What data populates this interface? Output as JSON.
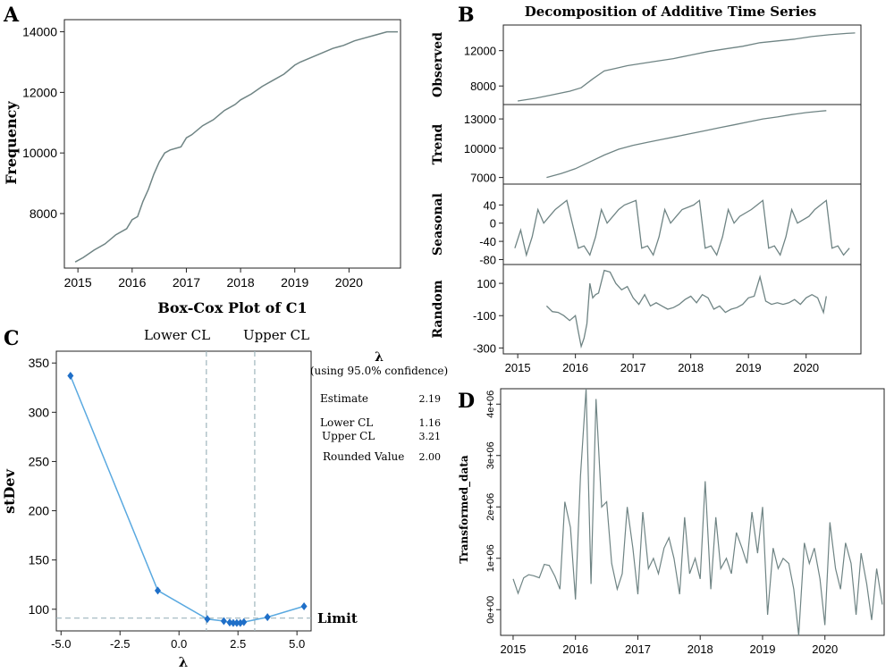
{
  "panels": {
    "A": {
      "letter": "A",
      "ylabel": "Frequency",
      "xlabel": "Box-Cox Plot of C1",
      "y_ticks": [
        "8000",
        "10000",
        "12000",
        "14000"
      ],
      "y_tick_values": [
        8000,
        10000,
        12000,
        14000
      ],
      "x_ticks": [
        "2015",
        "2016",
        "2017",
        "2018",
        "2019",
        "2020"
      ],
      "x_tick_values": [
        2015,
        2016,
        2017,
        2018,
        2019,
        2020
      ]
    },
    "B": {
      "letter": "B",
      "title": "Decomposition of Additive Time Series",
      "x_ticks": [
        "2015",
        "2016",
        "2017",
        "2018",
        "2019",
        "2020"
      ],
      "x_tick_values": [
        2015,
        2016,
        2017,
        2018,
        2019,
        2020
      ],
      "rows": [
        {
          "label": "Observed",
          "ticks": [
            "8000",
            "12000"
          ],
          "tick_values": [
            8000,
            12000
          ]
        },
        {
          "label": "Trend",
          "ticks": [
            "7000",
            "10000",
            "13000"
          ],
          "tick_values": [
            7000,
            10000,
            13000
          ]
        },
        {
          "label": "Seasonal",
          "ticks": [
            "-80",
            "-40",
            "0",
            "40"
          ],
          "tick_values": [
            -80,
            -40,
            0,
            40
          ]
        },
        {
          "label": "Random",
          "ticks": [
            "-300",
            "-100",
            "100"
          ],
          "tick_values": [
            -300,
            -100,
            100
          ]
        }
      ]
    },
    "C": {
      "letter": "C",
      "ylabel": "stDev",
      "xlabel": "λ",
      "lower_cl_label": "Lower CL",
      "upper_cl_label": "Upper CL",
      "limit_label": "Limit",
      "y_ticks": [
        "100",
        "150",
        "200",
        "250",
        "300",
        "350"
      ],
      "y_tick_values": [
        100,
        150,
        200,
        250,
        300,
        350
      ],
      "x_ticks": [
        "-5.0",
        "-2.5",
        "0.0",
        "2.5",
        "5.0"
      ],
      "x_tick_values": [
        -5,
        -2.5,
        0,
        2.5,
        5
      ],
      "stats": {
        "lambda_label": "λ",
        "confidence": "(using 95.0% confidence)",
        "estimate_label": "Estimate",
        "estimate": "2.19",
        "lower_label": "Lower CL",
        "lower": "1.16",
        "upper_label": "Upper CL",
        "upper": "3.21",
        "rounded_label": "Rounded Value",
        "rounded": "2.00"
      }
    },
    "D": {
      "letter": "D",
      "ylabel": "Transformed_data",
      "y_ticks": [
        "0e+00",
        "1e+06",
        "2e+06",
        "3e+06",
        "4e+06"
      ],
      "y_tick_values": [
        0,
        1000000,
        2000000,
        3000000,
        4000000
      ],
      "x_ticks": [
        "2015",
        "2016",
        "2017",
        "2018",
        "2019",
        "2020"
      ],
      "x_tick_values": [
        2015,
        2016,
        2017,
        2018,
        2019,
        2020
      ]
    }
  },
  "colors": {
    "line_gray": "#6f8484",
    "line_blue": "#5aa9e0",
    "marker_blue": "#1f6fc8",
    "cl_dashed": "#9fb5bd",
    "axis": "#222222"
  },
  "chart_data": [
    {
      "panel": "A",
      "type": "line",
      "ylabel": "Frequency",
      "xlabel": "Box-Cox Plot of C1",
      "ylim": [
        6200,
        14400
      ],
      "xlim": [
        2014.75,
        2020.95
      ],
      "x": [
        2014.95,
        2015.1,
        2015.3,
        2015.5,
        2015.7,
        2015.9,
        2016.0,
        2016.1,
        2016.2,
        2016.3,
        2016.4,
        2016.5,
        2016.6,
        2016.7,
        2016.9,
        2017.0,
        2017.1,
        2017.3,
        2017.5,
        2017.7,
        2017.9,
        2018.0,
        2018.2,
        2018.4,
        2018.6,
        2018.8,
        2019.0,
        2019.1,
        2019.3,
        2019.5,
        2019.7,
        2019.9,
        2020.1,
        2020.3,
        2020.5,
        2020.7,
        2020.9
      ],
      "y": [
        6400,
        6550,
        6800,
        7000,
        7300,
        7500,
        7800,
        7900,
        8400,
        8800,
        9300,
        9700,
        10000,
        10100,
        10200,
        10500,
        10600,
        10900,
        11100,
        11400,
        11600,
        11750,
        11950,
        12200,
        12400,
        12600,
        12900,
        13000,
        13150,
        13300,
        13450,
        13550,
        13700,
        13800,
        13900,
        14000,
        14000
      ]
    },
    {
      "panel": "B",
      "type": "line",
      "title": "Decomposition of Additive Time Series",
      "xlim": [
        2014.75,
        2020.95
      ],
      "series": [
        {
          "name": "Observed",
          "ylim": [
            6200,
            14600
          ],
          "x": [
            2015.0,
            2015.3,
            2015.6,
            2015.9,
            2016.1,
            2016.3,
            2016.5,
            2016.7,
            2016.9,
            2017.1,
            2017.4,
            2017.7,
            2018.0,
            2018.3,
            2018.6,
            2018.9,
            2019.2,
            2019.5,
            2019.8,
            2020.1,
            2020.4,
            2020.7,
            2020.85
          ],
          "y": [
            6300,
            6600,
            7000,
            7400,
            7800,
            8800,
            9700,
            10000,
            10300,
            10500,
            10800,
            11100,
            11500,
            11900,
            12200,
            12500,
            12900,
            13100,
            13300,
            13600,
            13800,
            13950,
            14000
          ]
        },
        {
          "name": "Trend",
          "ylim": [
            6600,
            14200
          ],
          "x": [
            2015.5,
            2015.75,
            2016.0,
            2016.25,
            2016.5,
            2016.75,
            2017.0,
            2017.25,
            2017.5,
            2017.75,
            2018.0,
            2018.25,
            2018.5,
            2018.75,
            2019.0,
            2019.25,
            2019.5,
            2019.75,
            2020.0,
            2020.25,
            2020.35
          ],
          "y": [
            7000,
            7400,
            7900,
            8600,
            9300,
            9900,
            10300,
            10600,
            10900,
            11200,
            11500,
            11800,
            12100,
            12400,
            12700,
            13000,
            13200,
            13450,
            13650,
            13800,
            13850
          ]
        },
        {
          "name": "Seasonal",
          "ylim": [
            -85,
            80
          ],
          "x": [
            2014.95,
            2015.05,
            2015.15,
            2015.25,
            2015.35,
            2015.45,
            2015.55,
            2015.65,
            2015.75,
            2015.85,
            2016.05,
            2016.15,
            2016.25,
            2016.35,
            2016.45,
            2016.55,
            2016.65,
            2016.75,
            2016.85,
            2017.05,
            2017.15,
            2017.25,
            2017.35,
            2017.45,
            2017.55,
            2017.65,
            2017.75,
            2017.85,
            2018.05,
            2018.15,
            2018.25,
            2018.35,
            2018.45,
            2018.55,
            2018.65,
            2018.75,
            2018.85,
            2019.05,
            2019.15,
            2019.25,
            2019.35,
            2019.45,
            2019.55,
            2019.65,
            2019.75,
            2019.85,
            2020.05,
            2020.15,
            2020.25,
            2020.35,
            2020.45,
            2020.55,
            2020.65,
            2020.75
          ],
          "y": [
            -55,
            -15,
            -70,
            -30,
            30,
            0,
            15,
            30,
            40,
            50,
            -55,
            -50,
            -70,
            -30,
            30,
            0,
            15,
            30,
            40,
            50,
            -55,
            -50,
            -70,
            -30,
            30,
            0,
            15,
            30,
            40,
            50,
            -55,
            -50,
            -70,
            -30,
            30,
            0,
            15,
            30,
            40,
            50,
            -55,
            -50,
            -70,
            -30,
            30,
            0,
            15,
            30,
            40,
            50,
            -55,
            -50,
            -70,
            -55
          ]
        },
        {
          "name": "Random",
          "ylim": [
            -320,
            200
          ],
          "x": [
            2015.5,
            2015.6,
            2015.7,
            2015.8,
            2015.9,
            2016.0,
            2016.05,
            2016.1,
            2016.15,
            2016.2,
            2016.25,
            2016.3,
            2016.35,
            2016.4,
            2016.5,
            2016.6,
            2016.7,
            2016.8,
            2016.9,
            2017.0,
            2017.1,
            2017.2,
            2017.3,
            2017.4,
            2017.5,
            2017.6,
            2017.7,
            2017.8,
            2017.9,
            2018.0,
            2018.1,
            2018.2,
            2018.3,
            2018.4,
            2018.5,
            2018.6,
            2018.7,
            2018.8,
            2018.9,
            2019.0,
            2019.1,
            2019.2,
            2019.3,
            2019.4,
            2019.5,
            2019.6,
            2019.7,
            2019.8,
            2019.9,
            2020.0,
            2020.1,
            2020.2,
            2020.3,
            2020.35
          ],
          "y": [
            -40,
            -75,
            -80,
            -100,
            -130,
            -100,
            -200,
            -290,
            -240,
            -150,
            100,
            10,
            30,
            40,
            180,
            170,
            100,
            60,
            80,
            10,
            -30,
            30,
            -40,
            -20,
            -40,
            -60,
            -50,
            -30,
            0,
            20,
            -20,
            30,
            10,
            -60,
            -40,
            -80,
            -60,
            -50,
            -30,
            10,
            20,
            140,
            -10,
            -30,
            -20,
            -30,
            -20,
            0,
            -30,
            10,
            30,
            10,
            -80,
            20
          ]
        }
      ]
    },
    {
      "panel": "C",
      "type": "scatter",
      "xlabel": "λ",
      "ylabel": "stDev",
      "xlim": [
        -5.2,
        5.6
      ],
      "ylim": [
        78,
        362
      ],
      "x": [
        -4.6,
        -0.9,
        1.2,
        1.9,
        2.15,
        2.3,
        2.45,
        2.6,
        2.75,
        3.75,
        5.3
      ],
      "y": [
        337,
        119,
        90,
        88,
        86.5,
        86,
        86,
        86,
        87,
        92,
        103
      ],
      "lower_cl": 1.16,
      "upper_cl": 3.21,
      "limit": 91
    },
    {
      "panel": "D",
      "type": "line",
      "ylabel": "Transformed_data",
      "xlim": [
        2014.8,
        2020.95
      ],
      "ylim": [
        -500000,
        4300000
      ],
      "x": [
        2015.0,
        2015.08,
        2015.17,
        2015.25,
        2015.33,
        2015.42,
        2015.5,
        2015.58,
        2015.67,
        2015.75,
        2015.83,
        2015.92,
        2016.0,
        2016.08,
        2016.17,
        2016.25,
        2016.33,
        2016.42,
        2016.5,
        2016.58,
        2016.67,
        2016.75,
        2016.83,
        2016.92,
        2017.0,
        2017.08,
        2017.17,
        2017.25,
        2017.33,
        2017.42,
        2017.5,
        2017.58,
        2017.67,
        2017.75,
        2017.83,
        2017.92,
        2018.0,
        2018.08,
        2018.17,
        2018.25,
        2018.33,
        2018.42,
        2018.5,
        2018.58,
        2018.67,
        2018.75,
        2018.83,
        2018.92,
        2019.0,
        2019.08,
        2019.17,
        2019.25,
        2019.33,
        2019.42,
        2019.5,
        2019.58,
        2019.67,
        2019.75,
        2019.83,
        2019.92,
        2020.0,
        2020.08,
        2020.17,
        2020.25,
        2020.33,
        2020.42,
        2020.5,
        2020.58,
        2020.67,
        2020.75,
        2020.83,
        2020.92
      ],
      "y": [
        600000,
        320000,
        620000,
        680000,
        660000,
        620000,
        880000,
        860000,
        650000,
        400000,
        2100000,
        1600000,
        200000,
        2600000,
        4300000,
        500000,
        4100000,
        2000000,
        2100000,
        900000,
        400000,
        700000,
        2000000,
        1200000,
        300000,
        1900000,
        800000,
        1000000,
        700000,
        1200000,
        1400000,
        1000000,
        300000,
        1800000,
        700000,
        1000000,
        600000,
        2500000,
        400000,
        1800000,
        800000,
        1000000,
        700000,
        1500000,
        1200000,
        900000,
        1900000,
        1100000,
        2000000,
        -100000,
        1200000,
        800000,
        1000000,
        900000,
        400000,
        -500000,
        1300000,
        900000,
        1200000,
        600000,
        -300000,
        1700000,
        800000,
        400000,
        1300000,
        900000,
        -100000,
        1100000,
        500000,
        -200000,
        800000,
        100000
      ]
    }
  ]
}
